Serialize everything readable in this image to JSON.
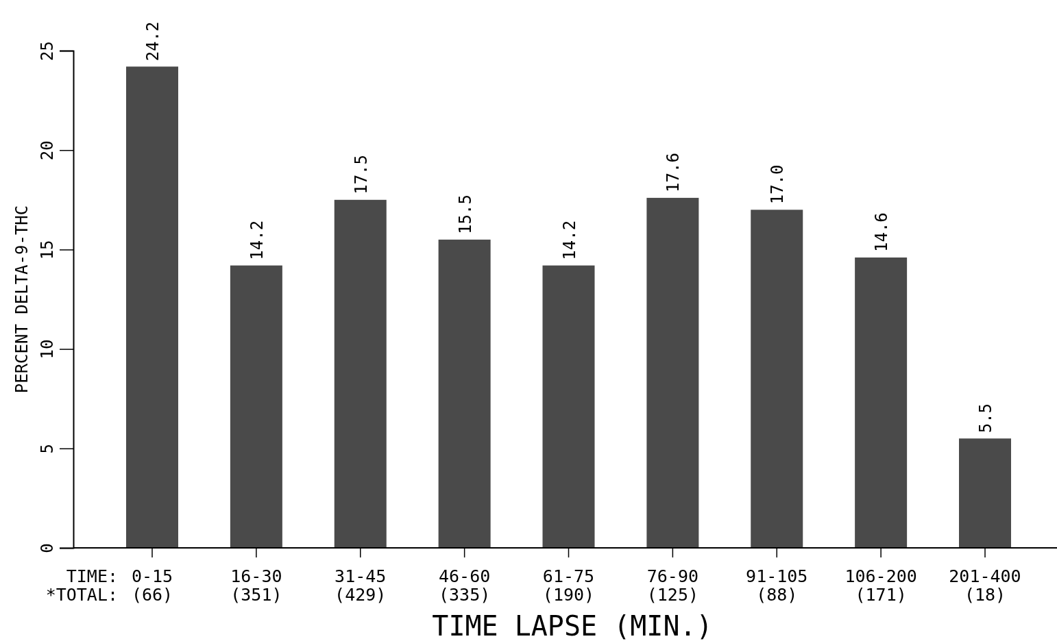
{
  "chart_data": {
    "type": "bar",
    "xlabel": "TIME LAPSE (MIN.)",
    "ylabel": "PERCENT DELTA-9-THC",
    "categories": [
      "0-15\n(66)",
      "16-30\n(351)",
      "31-45\n(429)",
      "46-60\n(335)",
      "61-75\n(190)",
      "76-90\n(125)",
      "91-105\n(88)",
      "106-200\n(171)",
      "201-400\n(18)"
    ],
    "values": [
      24.2,
      14.2,
      17.5,
      15.5,
      14.2,
      17.6,
      17.0,
      14.6,
      5.5
    ],
    "value_labels": [
      "24.2",
      "14.2",
      "17.5",
      "15.5",
      "14.2",
      "17.6",
      "17.0",
      "14.6",
      "5.5"
    ],
    "color": "#4a4a4a",
    "ylim": [
      0,
      25
    ],
    "yticks": [
      0,
      5,
      10,
      15,
      20,
      25
    ],
    "annotations": [
      "TIME:",
      "*TOTAL:"
    ],
    "grid": false
  }
}
